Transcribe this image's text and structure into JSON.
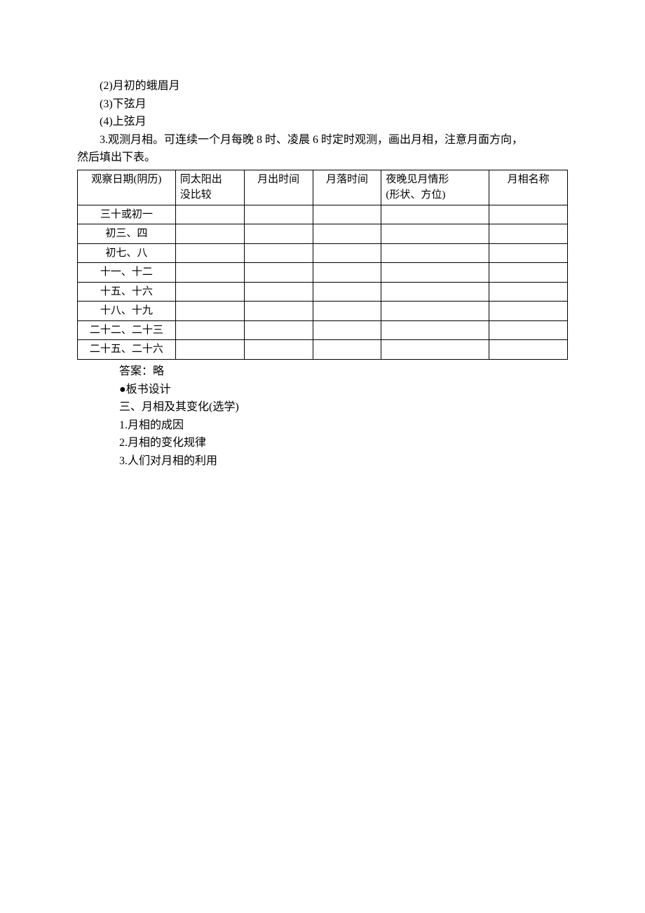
{
  "intro": {
    "item2": "(2)月初的蛾眉月",
    "item3": "(3)下弦月",
    "item4": "(4)上弦月",
    "q3_line1": "3.观测月相。可连续一个月每晚 8 时、凌晨 6 时定时观测，画出月相，注意月面方向，",
    "q3_line2": "然后填出下表。"
  },
  "table": {
    "columns": {
      "date": "观察日期(阴历)",
      "sun_line1": "同太阳出",
      "sun_line2": "没比较",
      "rise": "月出时间",
      "set": "月落时间",
      "night_line1": "夜晚见月情形",
      "night_line2": "(形状、方位)",
      "name": "月相名称"
    },
    "rows": [
      {
        "date": "三十或初一",
        "sun": "",
        "rise": "",
        "set": "",
        "night": "",
        "name": ""
      },
      {
        "date": "初三、四",
        "sun": "",
        "rise": "",
        "set": "",
        "night": "",
        "name": ""
      },
      {
        "date": "初七、八",
        "sun": "",
        "rise": "",
        "set": "",
        "night": "",
        "name": ""
      },
      {
        "date": "十一、十二",
        "sun": "",
        "rise": "",
        "set": "",
        "night": "",
        "name": ""
      },
      {
        "date": "十五、十六",
        "sun": "",
        "rise": "",
        "set": "",
        "night": "",
        "name": ""
      },
      {
        "date": "十八、十九",
        "sun": "",
        "rise": "",
        "set": "",
        "night": "",
        "name": ""
      },
      {
        "date": "二十二、二十三",
        "sun": "",
        "rise": "",
        "set": "",
        "night": "",
        "name": ""
      },
      {
        "date": "二十五、二十六",
        "sun": "",
        "rise": "",
        "set": "",
        "night": "",
        "name": ""
      }
    ]
  },
  "after": {
    "answer": "答案：略",
    "board_heading": "●板书设计",
    "section_title": "三、月相及其变化(选学)",
    "point1": "1.月相的成因",
    "point2": "2.月相的变化规律",
    "point3": "3.人们对月相的利用"
  }
}
